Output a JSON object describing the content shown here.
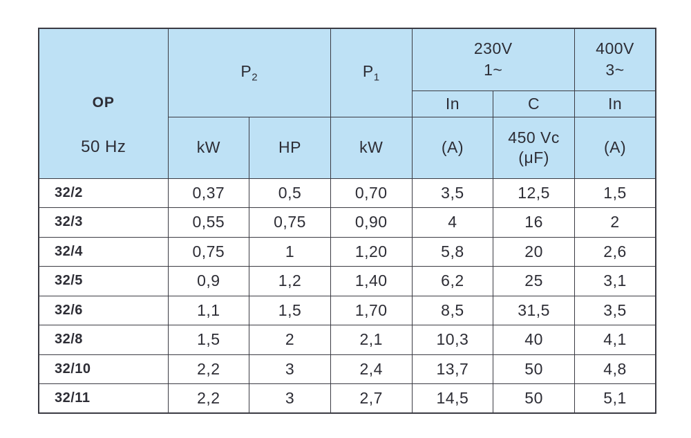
{
  "table": {
    "title_semantic": "motor electrical data 50 Hz",
    "header": {
      "op": "OP",
      "freq": "50 Hz",
      "p2_base": "P",
      "p2_sub": "2",
      "p1_base": "P",
      "p1_sub": "1",
      "v230_line1": "230V",
      "v230_line2": "1~",
      "v400_line1": "400V",
      "v400_line2": "3~",
      "in230": "In",
      "c230": "C",
      "in400": "In",
      "p2_kw_unit": "kW",
      "p2_hp_unit": "HP",
      "p1_kw_unit": "kW",
      "a230_unit": "(A)",
      "cap_line1": "450 Vc",
      "cap_line2": "(μF)",
      "a400_unit": "(A)"
    },
    "rows": [
      {
        "op": "32/2",
        "p2_kw": "0,37",
        "p2_hp": "0,5",
        "p1_kw": "0,70",
        "in230": "3,5",
        "cap": "12,5",
        "in400": "1,5"
      },
      {
        "op": "32/3",
        "p2_kw": "0,55",
        "p2_hp": "0,75",
        "p1_kw": "0,90",
        "in230": "4",
        "cap": "16",
        "in400": "2"
      },
      {
        "op": "32/4",
        "p2_kw": "0,75",
        "p2_hp": "1",
        "p1_kw": "1,20",
        "in230": "5,8",
        "cap": "20",
        "in400": "2,6"
      },
      {
        "op": "32/5",
        "p2_kw": "0,9",
        "p2_hp": "1,2",
        "p1_kw": "1,40",
        "in230": "6,2",
        "cap": "25",
        "in400": "3,1"
      },
      {
        "op": "32/6",
        "p2_kw": "1,1",
        "p2_hp": "1,5",
        "p1_kw": "1,70",
        "in230": "8,5",
        "cap": "31,5",
        "in400": "3,5"
      },
      {
        "op": "32/8",
        "p2_kw": "1,5",
        "p2_hp": "2",
        "p1_kw": "2,1",
        "in230": "10,3",
        "cap": "40",
        "in400": "4,1"
      },
      {
        "op": "32/10",
        "p2_kw": "2,2",
        "p2_hp": "3",
        "p1_kw": "2,4",
        "in230": "13,7",
        "cap": "50",
        "in400": "4,8"
      },
      {
        "op": "32/11",
        "p2_kw": "2,2",
        "p2_hp": "3",
        "p1_kw": "2,7",
        "in230": "14,5",
        "cap": "50",
        "in400": "5,1"
      }
    ]
  },
  "colors": {
    "header_background": "#bee1f5",
    "border": "#3a3a42",
    "text": "#2d2d35",
    "page_background": "#ffffff"
  }
}
